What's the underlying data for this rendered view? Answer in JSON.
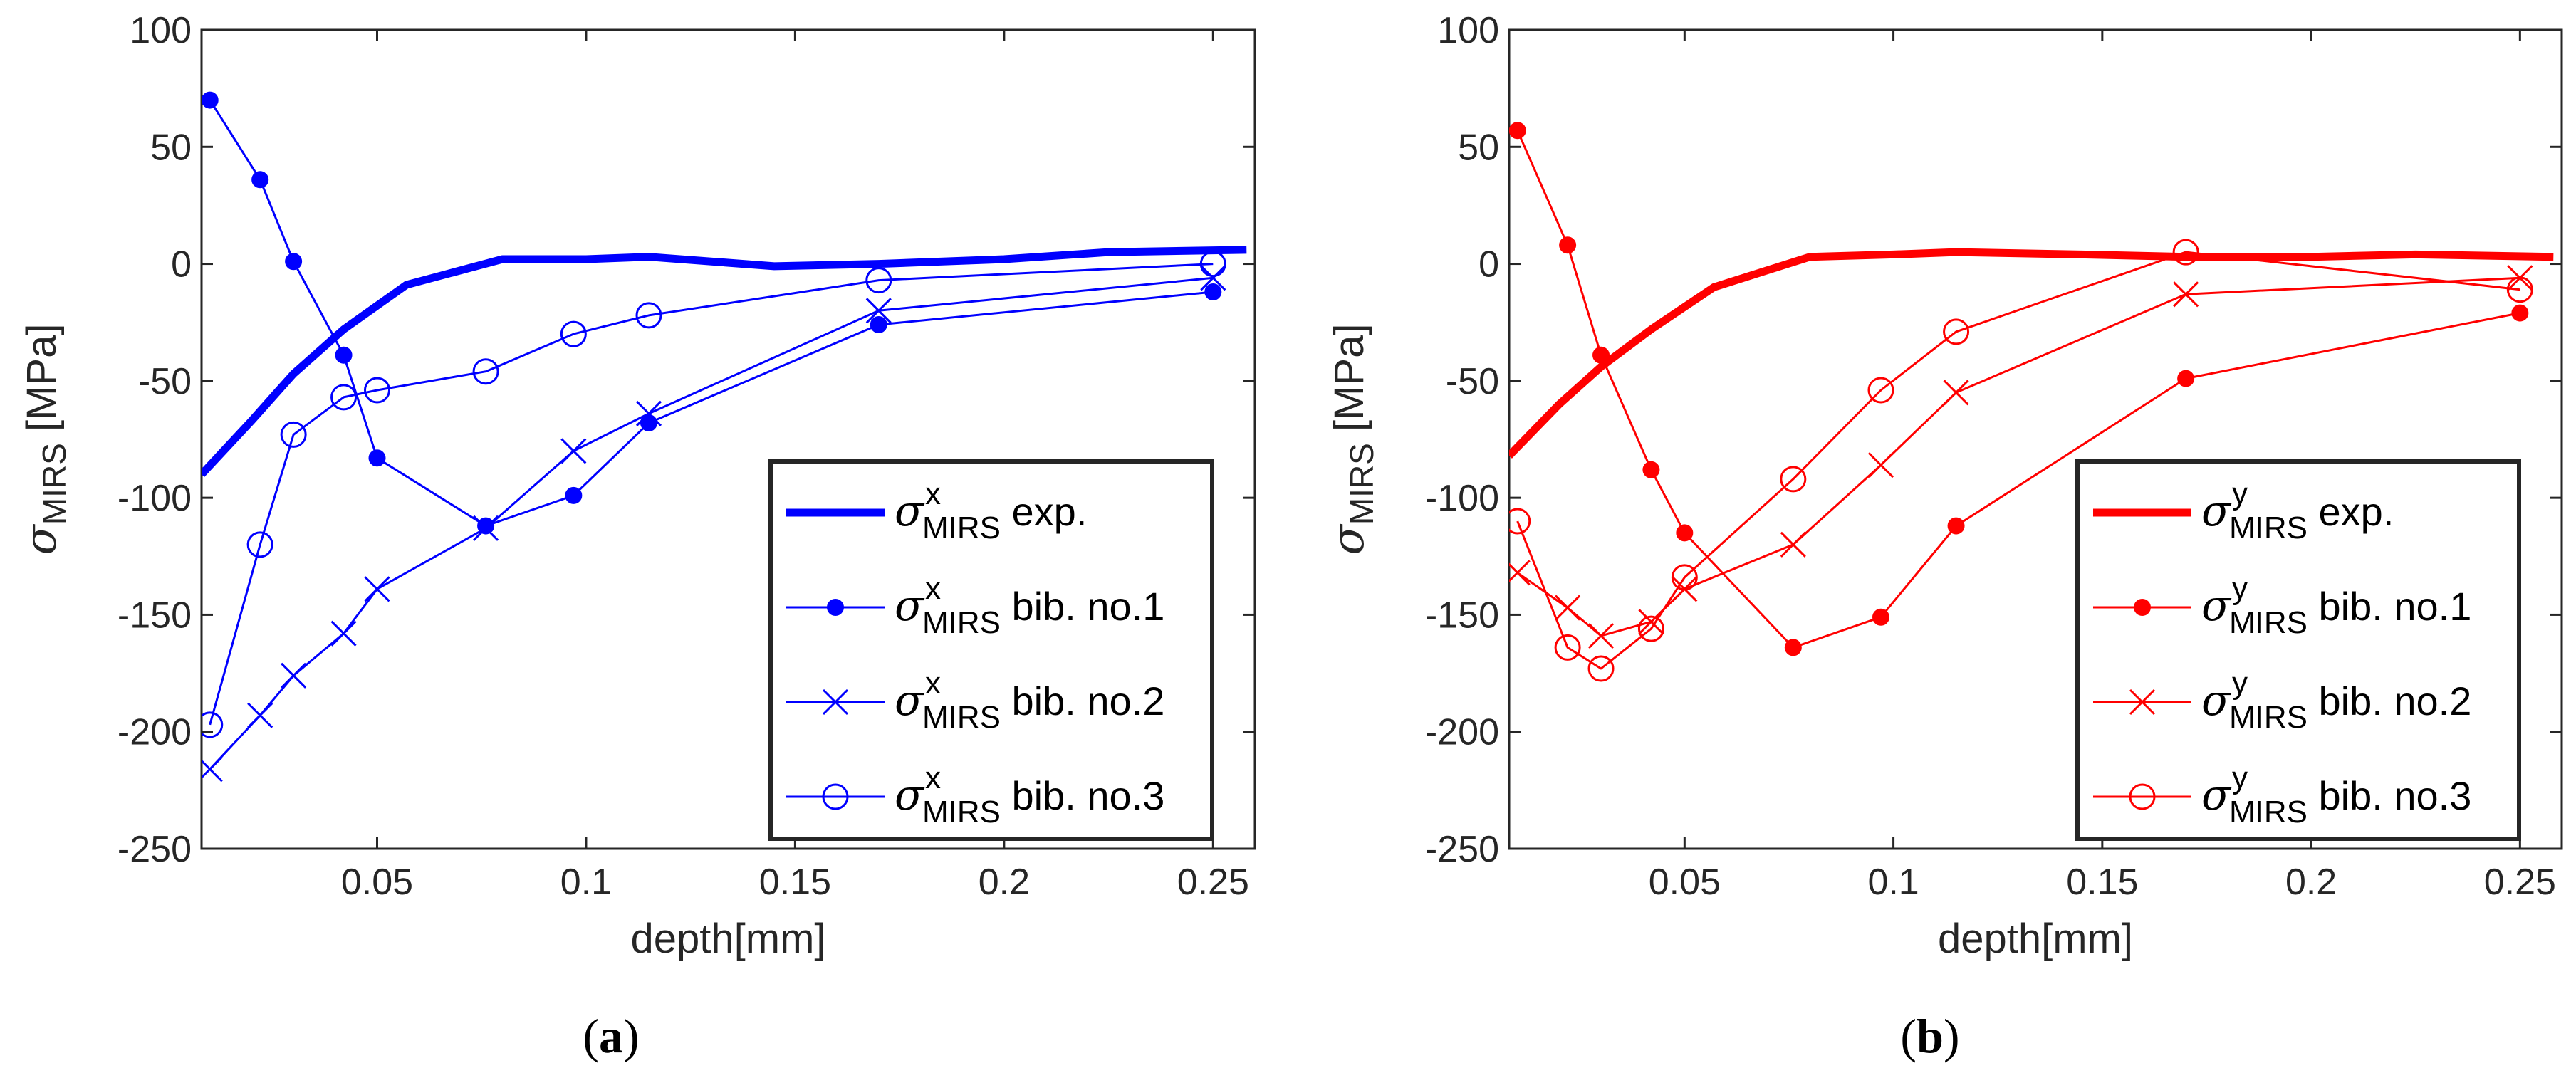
{
  "chart_data": [
    {
      "type": "line",
      "caption_letter": "a",
      "xlabel": "depth[mm]",
      "ylabel_symbol": "σ",
      "ylabel_sub": "MIRS",
      "ylabel_unit": "[MPa]",
      "xlim": [
        0.008,
        0.26
      ],
      "ylim": [
        -250,
        100
      ],
      "xticks": [
        0.05,
        0.1,
        0.15,
        0.2,
        0.25
      ],
      "xtick_labels": [
        "0.05",
        "0.1",
        "0.15",
        "0.2",
        "0.25"
      ],
      "yticks": [
        100,
        50,
        0,
        -50,
        -100,
        -150,
        -200,
        -250
      ],
      "ytick_labels": [
        "100",
        "50",
        "0",
        "-50",
        "-100",
        "-150",
        "-200",
        "-250"
      ],
      "color": "#0000ff",
      "grid": false,
      "legend_position": "bottom-right",
      "series": [
        {
          "name": "exp.",
          "sup": "x",
          "sub": "MIRS",
          "marker": "none",
          "thick": true,
          "x": [
            0.008,
            0.02,
            0.03,
            0.042,
            0.057,
            0.08,
            0.1,
            0.115,
            0.145,
            0.17,
            0.2,
            0.225,
            0.258
          ],
          "y": [
            -90,
            -67,
            -47,
            -28,
            -9,
            2,
            2,
            3,
            -1,
            0,
            2,
            5,
            6
          ]
        },
        {
          "name": "bib. no.1",
          "sup": "x",
          "sub": "MIRS",
          "marker": "dot",
          "thick": false,
          "x": [
            0.01,
            0.022,
            0.03,
            0.042,
            0.05,
            0.076,
            0.097,
            0.115,
            0.17,
            0.25
          ],
          "y": [
            70,
            36,
            1,
            -39,
            -83,
            -112,
            -99,
            -68,
            -26,
            -12
          ]
        },
        {
          "name": "bib. no.2",
          "sup": "x",
          "sub": "MIRS",
          "marker": "x",
          "thick": false,
          "x": [
            0.01,
            0.022,
            0.03,
            0.042,
            0.05,
            0.076,
            0.097,
            0.115,
            0.17,
            0.25
          ],
          "y": [
            -216,
            -193,
            -176,
            -158,
            -139,
            -113,
            -80,
            -64,
            -20,
            -6
          ]
        },
        {
          "name": "bib. no.3",
          "sup": "x",
          "sub": "MIRS",
          "marker": "circle",
          "thick": false,
          "x": [
            0.01,
            0.022,
            0.03,
            0.042,
            0.05,
            0.076,
            0.097,
            0.115,
            0.17,
            0.25
          ],
          "y": [
            -197,
            -120,
            -73,
            -57,
            -54,
            -46,
            -30,
            -22,
            -7,
            0
          ]
        }
      ]
    },
    {
      "type": "line",
      "caption_letter": "b",
      "xlabel": "depth[mm]",
      "ylabel_symbol": "σ",
      "ylabel_sub": "MIRS",
      "ylabel_unit": "[MPa]",
      "xlim": [
        0.008,
        0.26
      ],
      "ylim": [
        -250,
        100
      ],
      "xticks": [
        0.05,
        0.1,
        0.15,
        0.2,
        0.25
      ],
      "xtick_labels": [
        "0.05",
        "0.1",
        "0.15",
        "0.2",
        "0.25"
      ],
      "yticks": [
        100,
        50,
        0,
        -50,
        -100,
        -150,
        -200,
        -250
      ],
      "ytick_labels": [
        "100",
        "50",
        "0",
        "-50",
        "-100",
        "-150",
        "-200",
        "-250"
      ],
      "color": "#ff0000",
      "grid": false,
      "legend_position": "bottom-right",
      "series": [
        {
          "name": "exp.",
          "sup": "y",
          "sub": "MIRS",
          "marker": "none",
          "thick": true,
          "x": [
            0.008,
            0.02,
            0.03,
            0.042,
            0.057,
            0.08,
            0.1,
            0.115,
            0.145,
            0.17,
            0.2,
            0.225,
            0.258
          ],
          "y": [
            -82,
            -60,
            -44,
            -28,
            -10,
            3,
            4,
            5,
            4,
            3,
            3,
            4,
            3
          ]
        },
        {
          "name": "bib. no.1",
          "sup": "y",
          "sub": "MIRS",
          "marker": "dot",
          "thick": false,
          "x": [
            0.01,
            0.022,
            0.03,
            0.042,
            0.05,
            0.076,
            0.097,
            0.115,
            0.17,
            0.25
          ],
          "y": [
            57,
            8,
            -39,
            -88,
            -115,
            -164,
            -151,
            -112,
            -49,
            -21
          ]
        },
        {
          "name": "bib. no.2",
          "sup": "y",
          "sub": "MIRS",
          "marker": "x",
          "thick": false,
          "x": [
            0.01,
            0.022,
            0.03,
            0.042,
            0.05,
            0.076,
            0.097,
            0.115,
            0.17,
            0.25
          ],
          "y": [
            -132,
            -147,
            -159,
            -153,
            -139,
            -120,
            -86,
            -55,
            -13,
            -6
          ]
        },
        {
          "name": "bib. no.3",
          "sup": "y",
          "sub": "MIRS",
          "marker": "circle",
          "thick": false,
          "x": [
            0.01,
            0.022,
            0.03,
            0.042,
            0.05,
            0.076,
            0.097,
            0.115,
            0.17,
            0.25
          ],
          "y": [
            -110,
            -164,
            -173,
            -156,
            -134,
            -92,
            -54,
            -29,
            5,
            -11
          ]
        }
      ]
    }
  ]
}
